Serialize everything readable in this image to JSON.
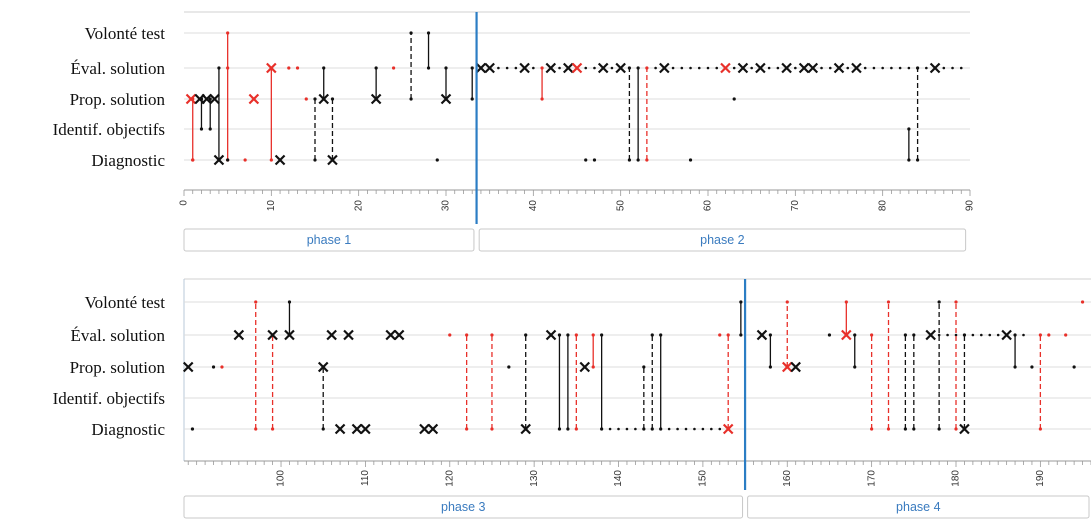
{
  "chart_data": [
    {
      "type": "scatter",
      "panel": "top",
      "categories": [
        "Volonté test",
        "Éval. solution",
        "Prop. solution",
        "Identif. objectifs",
        "Diagnostic"
      ],
      "xlim": [
        0,
        90
      ],
      "xticks": [
        0,
        10,
        20,
        30,
        40,
        50,
        60,
        70,
        80,
        90
      ],
      "divider_x": 33.5,
      "phases": [
        {
          "label": "phase 1",
          "from": 0,
          "to": 33.2
        },
        {
          "label": "phase 2",
          "from": 33.8,
          "to": 89.5
        }
      ],
      "segments": [
        {
          "x": 1,
          "from": "Diagnostic",
          "to": "Prop. solution",
          "color": "red",
          "dash": false
        },
        {
          "x": 2,
          "from": "Identif. objectifs",
          "to": "Prop. solution",
          "color": "black",
          "dash": false
        },
        {
          "x": 3,
          "from": "Identif. objectifs",
          "to": "Prop. solution",
          "color": "black",
          "dash": false
        },
        {
          "x": 4,
          "from": "Diagnostic",
          "to": "Éval. solution",
          "color": "black",
          "dash": false
        },
        {
          "x": 5,
          "from": "Diagnostic",
          "to": "Volonté test",
          "color": "red",
          "dash": false
        },
        {
          "x": 10,
          "from": "Diagnostic",
          "to": "Éval. solution",
          "color": "red",
          "dash": false
        },
        {
          "x": 15,
          "from": "Diagnostic",
          "to": "Prop. solution",
          "color": "black",
          "dash": true
        },
        {
          "x": 16,
          "from": "Prop. solution",
          "to": "Éval. solution",
          "color": "black",
          "dash": false
        },
        {
          "x": 17,
          "from": "Diagnostic",
          "to": "Prop. solution",
          "color": "black",
          "dash": true
        },
        {
          "x": 22,
          "from": "Prop. solution",
          "to": "Éval. solution",
          "color": "black",
          "dash": false
        },
        {
          "x": 26,
          "from": "Prop. solution",
          "to": "Volonté test",
          "color": "black",
          "dash": true
        },
        {
          "x": 28,
          "from": "Éval. solution",
          "to": "Volonté test",
          "color": "black",
          "dash": false
        },
        {
          "x": 30,
          "from": "Prop. solution",
          "to": "Éval. solution",
          "color": "black",
          "dash": false
        },
        {
          "x": 33,
          "from": "Prop. solution",
          "to": "Éval. solution",
          "color": "black",
          "dash": false
        },
        {
          "x": 41,
          "from": "Prop. solution",
          "to": "Éval. solution",
          "color": "red",
          "dash": false
        },
        {
          "x": 51,
          "from": "Diagnostic",
          "to": "Éval. solution",
          "color": "black",
          "dash": true
        },
        {
          "x": 52,
          "from": "Diagnostic",
          "to": "Éval. solution",
          "color": "black",
          "dash": false
        },
        {
          "x": 53,
          "from": "Diagnostic",
          "to": "Éval. solution",
          "color": "red",
          "dash": true
        },
        {
          "x": 83,
          "from": "Diagnostic",
          "to": "Identif. objectifs",
          "color": "black",
          "dash": false
        },
        {
          "x": 84,
          "from": "Diagnostic",
          "to": "Éval. solution",
          "color": "black",
          "dash": true
        }
      ],
      "points": [
        {
          "x": 1,
          "cat": "Diagnostic",
          "color": "red",
          "mark": "dot"
        },
        {
          "x": 0.8,
          "cat": "Prop. solution",
          "color": "red",
          "mark": "x"
        },
        {
          "x": 1.8,
          "cat": "Prop. solution",
          "color": "black",
          "mark": "x"
        },
        {
          "x": 2.6,
          "cat": "Prop. solution",
          "color": "black",
          "mark": "x"
        },
        {
          "x": 3.5,
          "cat": "Prop. solution",
          "color": "black",
          "mark": "x"
        },
        {
          "x": 4,
          "cat": "Diagnostic",
          "color": "black",
          "mark": "x"
        },
        {
          "x": 5,
          "cat": "Diagnostic",
          "color": "black",
          "mark": "dot"
        },
        {
          "x": 5,
          "cat": "Éval. solution",
          "color": "red",
          "mark": "dot"
        },
        {
          "x": 7,
          "cat": "Diagnostic",
          "color": "red",
          "mark": "dot"
        },
        {
          "x": 8,
          "cat": "Prop. solution",
          "color": "red",
          "mark": "x"
        },
        {
          "x": 10,
          "cat": "Éval. solution",
          "color": "red",
          "mark": "x"
        },
        {
          "x": 11,
          "cat": "Diagnostic",
          "color": "black",
          "mark": "x"
        },
        {
          "x": 12,
          "cat": "Éval. solution",
          "color": "red",
          "mark": "dot"
        },
        {
          "x": 13,
          "cat": "Éval. solution",
          "color": "red",
          "mark": "dot"
        },
        {
          "x": 14,
          "cat": "Prop. solution",
          "color": "red",
          "mark": "dot"
        },
        {
          "x": 16,
          "cat": "Prop. solution",
          "color": "black",
          "mark": "x"
        },
        {
          "x": 17,
          "cat": "Diagnostic",
          "color": "black",
          "mark": "x"
        },
        {
          "x": 22,
          "cat": "Prop. solution",
          "color": "black",
          "mark": "x"
        },
        {
          "x": 24,
          "cat": "Éval. solution",
          "color": "red",
          "mark": "dot"
        },
        {
          "x": 29,
          "cat": "Diagnostic",
          "color": "black",
          "mark": "dot"
        },
        {
          "x": 30,
          "cat": "Prop. solution",
          "color": "black",
          "mark": "x"
        },
        {
          "x": 34,
          "cat": "Éval. solution",
          "color": "black",
          "mark": "x"
        },
        {
          "x": 35,
          "cat": "Éval. solution",
          "color": "black",
          "mark": "x"
        },
        {
          "x": 39,
          "cat": "Éval. solution",
          "color": "black",
          "mark": "x"
        },
        {
          "x": 42,
          "cat": "Éval. solution",
          "color": "black",
          "mark": "x"
        },
        {
          "x": 44,
          "cat": "Éval. solution",
          "color": "black",
          "mark": "x"
        },
        {
          "x": 45,
          "cat": "Éval. solution",
          "color": "red",
          "mark": "x"
        },
        {
          "x": 48,
          "cat": "Éval. solution",
          "color": "black",
          "mark": "x"
        },
        {
          "x": 50,
          "cat": "Éval. solution",
          "color": "black",
          "mark": "x"
        },
        {
          "x": 55,
          "cat": "Éval. solution",
          "color": "black",
          "mark": "x"
        },
        {
          "x": 62,
          "cat": "Éval. solution",
          "color": "red",
          "mark": "x"
        },
        {
          "x": 64,
          "cat": "Éval. solution",
          "color": "black",
          "mark": "x"
        },
        {
          "x": 66,
          "cat": "Éval. solution",
          "color": "black",
          "mark": "x"
        },
        {
          "x": 69,
          "cat": "Éval. solution",
          "color": "black",
          "mark": "x"
        },
        {
          "x": 71,
          "cat": "Éval. solution",
          "color": "black",
          "mark": "x"
        },
        {
          "x": 72,
          "cat": "Éval. solution",
          "color": "black",
          "mark": "x"
        },
        {
          "x": 75,
          "cat": "Éval. solution",
          "color": "black",
          "mark": "x"
        },
        {
          "x": 77,
          "cat": "Éval. solution",
          "color": "black",
          "mark": "x"
        },
        {
          "x": 86,
          "cat": "Éval. solution",
          "color": "black",
          "mark": "x"
        },
        {
          "x": 46,
          "cat": "Diagnostic",
          "color": "black",
          "mark": "dot"
        },
        {
          "x": 47,
          "cat": "Diagnostic",
          "color": "black",
          "mark": "dot"
        },
        {
          "x": 58,
          "cat": "Diagnostic",
          "color": "black",
          "mark": "dot"
        },
        {
          "x": 63,
          "cat": "Prop. solution",
          "color": "black",
          "mark": "dot"
        }
      ],
      "dotted_runs": [
        {
          "cat": "Éval. solution",
          "from": 34,
          "to": 89,
          "step": 1,
          "color": "black"
        }
      ]
    },
    {
      "type": "scatter",
      "panel": "bottom",
      "categories": [
        "Volonté test",
        "Éval. solution",
        "Prop. solution",
        "Identif. objectifs",
        "Diagnostic"
      ],
      "xlim": [
        88.5,
        196
      ],
      "xticks": [
        100,
        110,
        120,
        130,
        140,
        150,
        160,
        170,
        180,
        190
      ],
      "divider_x": 155,
      "phases": [
        {
          "label": "phase 3",
          "from": 88.5,
          "to": 154.7
        },
        {
          "label": "phase 4",
          "from": 155.3,
          "to": 196
        }
      ],
      "segments": [
        {
          "x": 97,
          "from": "Diagnostic",
          "to": "Volonté test",
          "color": "red",
          "dash": true
        },
        {
          "x": 99,
          "from": "Diagnostic",
          "to": "Éval. solution",
          "color": "red",
          "dash": true
        },
        {
          "x": 101,
          "from": "Éval. solution",
          "to": "Volonté test",
          "color": "black",
          "dash": false
        },
        {
          "x": 105,
          "from": "Diagnostic",
          "to": "Prop. solution",
          "color": "black",
          "dash": true
        },
        {
          "x": 122,
          "from": "Diagnostic",
          "to": "Éval. solution",
          "color": "red",
          "dash": true
        },
        {
          "x": 125,
          "from": "Diagnostic",
          "to": "Éval. solution",
          "color": "red",
          "dash": true
        },
        {
          "x": 129,
          "from": "Diagnostic",
          "to": "Éval. solution",
          "color": "black",
          "dash": true
        },
        {
          "x": 133,
          "from": "Diagnostic",
          "to": "Éval. solution",
          "color": "black",
          "dash": false
        },
        {
          "x": 134,
          "from": "Diagnostic",
          "to": "Éval. solution",
          "color": "black",
          "dash": false
        },
        {
          "x": 135,
          "from": "Diagnostic",
          "to": "Éval. solution",
          "color": "red",
          "dash": true
        },
        {
          "x": 137,
          "from": "Prop. solution",
          "to": "Éval. solution",
          "color": "red",
          "dash": false
        },
        {
          "x": 138,
          "from": "Diagnostic",
          "to": "Éval. solution",
          "color": "black",
          "dash": false
        },
        {
          "x": 143,
          "from": "Diagnostic",
          "to": "Prop. solution",
          "color": "black",
          "dash": true
        },
        {
          "x": 144,
          "from": "Diagnostic",
          "to": "Éval. solution",
          "color": "black",
          "dash": true
        },
        {
          "x": 145,
          "from": "Diagnostic",
          "to": "Éval. solution",
          "color": "black",
          "dash": false
        },
        {
          "x": 153,
          "from": "Diagnostic",
          "to": "Éval. solution",
          "color": "red",
          "dash": true
        },
        {
          "x": 154.5,
          "from": "Éval. solution",
          "to": "Volonté test",
          "color": "black",
          "dash": false
        },
        {
          "x": 158,
          "from": "Éval. solution",
          "to": "Prop. solution",
          "color": "black",
          "dash": false
        },
        {
          "x": 160,
          "from": "Prop. solution",
          "to": "Volonté test",
          "color": "red",
          "dash": true
        },
        {
          "x": 167,
          "from": "Éval. solution",
          "to": "Volonté test",
          "color": "red",
          "dash": false
        },
        {
          "x": 168,
          "from": "Prop. solution",
          "to": "Éval. solution",
          "color": "black",
          "dash": false
        },
        {
          "x": 170,
          "from": "Diagnostic",
          "to": "Éval. solution",
          "color": "red",
          "dash": true
        },
        {
          "x": 172,
          "from": "Diagnostic",
          "to": "Volonté test",
          "color": "red",
          "dash": true
        },
        {
          "x": 174,
          "from": "Diagnostic",
          "to": "Éval. solution",
          "color": "black",
          "dash": true
        },
        {
          "x": 175,
          "from": "Diagnostic",
          "to": "Éval. solution",
          "color": "black",
          "dash": true
        },
        {
          "x": 178,
          "from": "Diagnostic",
          "to": "Volonté test",
          "color": "black",
          "dash": true
        },
        {
          "x": 180,
          "from": "Diagnostic",
          "to": "Volonté test",
          "color": "red",
          "dash": true
        },
        {
          "x": 181,
          "from": "Diagnostic",
          "to": "Éval. solution",
          "color": "black",
          "dash": true
        },
        {
          "x": 187,
          "from": "Prop. solution",
          "to": "Éval. solution",
          "color": "black",
          "dash": false
        },
        {
          "x": 190,
          "from": "Diagnostic",
          "to": "Éval. solution",
          "color": "red",
          "dash": true
        }
      ],
      "points": [
        {
          "x": 89,
          "cat": "Prop. solution",
          "color": "black",
          "mark": "x"
        },
        {
          "x": 89.5,
          "cat": "Diagnostic",
          "color": "black",
          "mark": "dot"
        },
        {
          "x": 92,
          "cat": "Prop. solution",
          "color": "black",
          "mark": "dot"
        },
        {
          "x": 93,
          "cat": "Prop. solution",
          "color": "red",
          "mark": "dot"
        },
        {
          "x": 95,
          "cat": "Éval. solution",
          "color": "black",
          "mark": "x"
        },
        {
          "x": 99,
          "cat": "Éval. solution",
          "color": "black",
          "mark": "x"
        },
        {
          "x": 101,
          "cat": "Éval. solution",
          "color": "black",
          "mark": "x"
        },
        {
          "x": 105,
          "cat": "Prop. solution",
          "color": "black",
          "mark": "x"
        },
        {
          "x": 106,
          "cat": "Éval. solution",
          "color": "black",
          "mark": "x"
        },
        {
          "x": 108,
          "cat": "Éval. solution",
          "color": "black",
          "mark": "x"
        },
        {
          "x": 107,
          "cat": "Diagnostic",
          "color": "black",
          "mark": "x"
        },
        {
          "x": 109,
          "cat": "Diagnostic",
          "color": "black",
          "mark": "x"
        },
        {
          "x": 110,
          "cat": "Diagnostic",
          "color": "black",
          "mark": "x"
        },
        {
          "x": 113,
          "cat": "Éval. solution",
          "color": "black",
          "mark": "x"
        },
        {
          "x": 114,
          "cat": "Éval. solution",
          "color": "black",
          "mark": "x"
        },
        {
          "x": 117,
          "cat": "Diagnostic",
          "color": "black",
          "mark": "x"
        },
        {
          "x": 118,
          "cat": "Diagnostic",
          "color": "black",
          "mark": "x"
        },
        {
          "x": 129,
          "cat": "Diagnostic",
          "color": "black",
          "mark": "x"
        },
        {
          "x": 132,
          "cat": "Éval. solution",
          "color": "black",
          "mark": "x"
        },
        {
          "x": 136,
          "cat": "Prop. solution",
          "color": "black",
          "mark": "x"
        },
        {
          "x": 153,
          "cat": "Diagnostic",
          "color": "red",
          "mark": "x"
        },
        {
          "x": 157,
          "cat": "Éval. solution",
          "color": "black",
          "mark": "x"
        },
        {
          "x": 160,
          "cat": "Prop. solution",
          "color": "red",
          "mark": "x"
        },
        {
          "x": 161,
          "cat": "Prop. solution",
          "color": "black",
          "mark": "x"
        },
        {
          "x": 167,
          "cat": "Éval. solution",
          "color": "red",
          "mark": "x"
        },
        {
          "x": 177,
          "cat": "Éval. solution",
          "color": "black",
          "mark": "x"
        },
        {
          "x": 181,
          "cat": "Diagnostic",
          "color": "black",
          "mark": "x"
        },
        {
          "x": 186,
          "cat": "Éval. solution",
          "color": "black",
          "mark": "x"
        },
        {
          "x": 195,
          "cat": "Volonté test",
          "color": "red",
          "mark": "dot"
        },
        {
          "x": 120,
          "cat": "Éval. solution",
          "color": "red",
          "mark": "dot"
        },
        {
          "x": 127,
          "cat": "Prop. solution",
          "color": "black",
          "mark": "dot"
        },
        {
          "x": 152,
          "cat": "Éval. solution",
          "color": "red",
          "mark": "dot"
        },
        {
          "x": 165,
          "cat": "Éval. solution",
          "color": "black",
          "mark": "dot"
        },
        {
          "x": 191,
          "cat": "Éval. solution",
          "color": "red",
          "mark": "dot"
        },
        {
          "x": 193,
          "cat": "Éval. solution",
          "color": "red",
          "mark": "dot"
        },
        {
          "x": 189,
          "cat": "Prop. solution",
          "color": "black",
          "mark": "dot"
        },
        {
          "x": 194,
          "cat": "Prop. solution",
          "color": "black",
          "mark": "dot"
        }
      ],
      "dotted_runs": [
        {
          "cat": "Diagnostic",
          "from": 138,
          "to": 152,
          "step": 1,
          "color": "black"
        },
        {
          "cat": "Éval. solution",
          "from": 178,
          "to": 188,
          "step": 1,
          "color": "black"
        }
      ]
    }
  ]
}
